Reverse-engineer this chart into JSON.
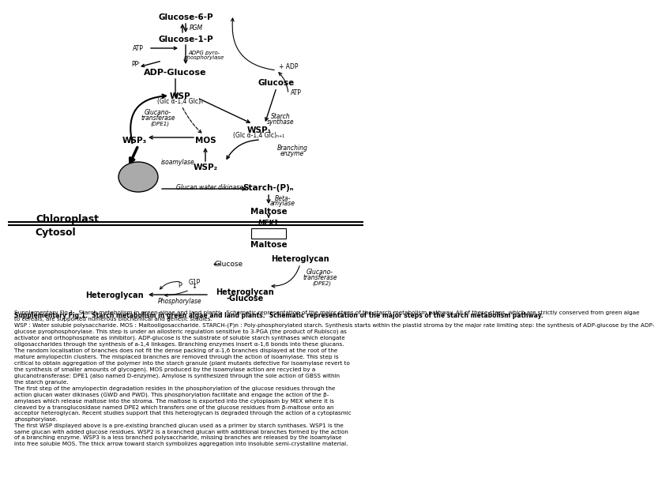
{
  "title": "Supplementary Fig.1.",
  "bg_color": "#ffffff",
  "description_bold": "Supplementary Fig.1.  Starch metabolism in green algae and land plants.  Schematic representation of the major steps of the starch metabolism pathway.",
  "description_normal": " All of these steps, which are strictly conserved from green algae to cereals, are supported numerous biochemical and genetic studies.\nWSP : Water soluble polysaccharide. MOS : Maltooligosaccharide. STARCH-(P)n : Poly-phosphorylated starch. Synthesis starts within the plastid stroma by the major rate limiting step: the synthesis of ADP-glucose by the ADP-glucose pyrophosphorylase. This step is under an allosteric regulation sensitive to 3-PGA (the product of Rubisco) as activator and orthophosphate as inhibitor). ADP-glucose is the substrate of soluble starch synthases which elongate oligosaccharides through the synthesis of a-1,4 linkages. Branching enzymes insert α-1,6 bonds into these glucans. The random localisation of branches does not fit the dense packing of α-1,6 branches displayed at the root of the mature amylopectin clusters. The misplaced branches are removed through the action of isoamylase. This step is critical to obtain aggregation of the polymer into the starch granule (plant mutants defective for isoamylase revert to the synthesis of smaller amounts of glycogen). MOS produced by the isoamylase action are recycled by a glucanotransferase: DPE1 (also named D-enzyme). Amylose is synthesized through the sole action of GBSS within the starch granule.\nThe first step of the amylopectin degradation resides in the phosphorylation of the glucose residues through the action glucan water dikinases (GWD and PWD). This phosphorylation facilitate and engage the action of the β-amylases which release maltose into the stroma. The maltose is exported into the cytoplasm by MEX where it is cleaved by a transglucosidase named DPE2 which transfers one of the glucose residues from β-maltose onto an acceptor heteroglycan. Recent studies support that this heteroglycan is degraded through the action of a cytoplasmic phosphorylase.\nThe first WSP displayed above is a pre-existing branched glucan used as a primer by starch synthases. WSP1 is the same glucan with added glucose residues. WSP2 is a branched glucan with additional branches formed by the action of a branching enzyme. WSP3 is a less branched polysaccharide, missing branches are released by the isoamylase into free soluble MOS. The thick arrow toward starch symbolizes aggregation into insoluble semi-crystalline material."
}
